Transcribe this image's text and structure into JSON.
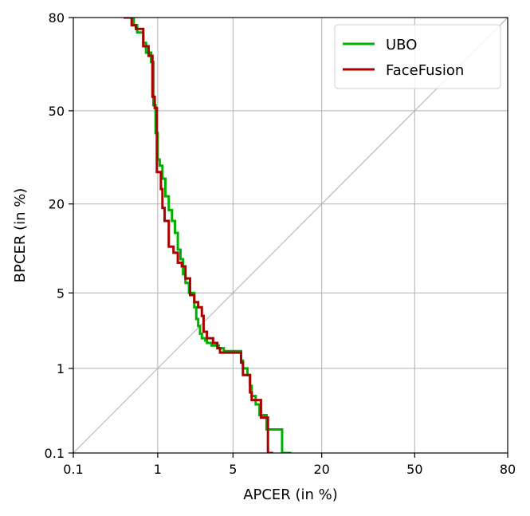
{
  "chart_data": {
    "type": "line",
    "scale": "normal-deviate (DET)",
    "xlabel": "APCER (in %)",
    "ylabel": "BPCER (in %)",
    "xlim": [
      0.1,
      80
    ],
    "ylim": [
      0.1,
      80
    ],
    "x_ticks": [
      0.1,
      1,
      5,
      20,
      50,
      80
    ],
    "y_ticks": [
      0.1,
      1,
      5,
      20,
      50,
      80
    ],
    "x_tick_labels": [
      "0.1",
      "1",
      "5",
      "20",
      "50",
      "80"
    ],
    "y_tick_labels": [
      "0.1",
      "1",
      "5",
      "20",
      "50",
      "80"
    ],
    "grid": true,
    "diagonal_reference_line": true,
    "legend_position": "top-right",
    "series": [
      {
        "name": "UBO",
        "color": "#00b000",
        "points": [
          [
            0.45,
            80
          ],
          [
            0.55,
            80
          ],
          [
            0.55,
            78
          ],
          [
            0.6,
            78
          ],
          [
            0.6,
            76
          ],
          [
            0.7,
            76
          ],
          [
            0.7,
            73
          ],
          [
            0.75,
            73
          ],
          [
            0.75,
            70
          ],
          [
            0.85,
            70
          ],
          [
            0.85,
            67
          ],
          [
            0.9,
            67
          ],
          [
            0.9,
            52
          ],
          [
            0.95,
            52
          ],
          [
            0.95,
            42
          ],
          [
            1.0,
            42
          ],
          [
            1.0,
            33
          ],
          [
            1.05,
            33
          ],
          [
            1.05,
            31
          ],
          [
            1.12,
            31
          ],
          [
            1.12,
            27
          ],
          [
            1.2,
            27
          ],
          [
            1.2,
            22
          ],
          [
            1.3,
            22
          ],
          [
            1.3,
            18.5
          ],
          [
            1.4,
            18.5
          ],
          [
            1.4,
            16
          ],
          [
            1.5,
            16
          ],
          [
            1.5,
            13.5
          ],
          [
            1.6,
            13.5
          ],
          [
            1.6,
            10.5
          ],
          [
            1.7,
            10.5
          ],
          [
            1.7,
            9
          ],
          [
            1.8,
            9
          ],
          [
            1.8,
            7
          ],
          [
            1.9,
            7
          ],
          [
            1.9,
            6
          ],
          [
            2.05,
            6
          ],
          [
            2.05,
            5
          ],
          [
            2.3,
            5
          ],
          [
            2.3,
            3.8
          ],
          [
            2.4,
            3.8
          ],
          [
            2.4,
            3.0
          ],
          [
            2.5,
            3.0
          ],
          [
            2.5,
            2.6
          ],
          [
            2.6,
            2.6
          ],
          [
            2.6,
            2.2
          ],
          [
            2.7,
            2.2
          ],
          [
            2.7,
            2.0
          ],
          [
            2.9,
            2.0
          ],
          [
            2.9,
            1.9
          ],
          [
            3.0,
            1.9
          ],
          [
            3.0,
            1.8
          ],
          [
            3.3,
            1.8
          ],
          [
            3.3,
            1.7
          ],
          [
            3.8,
            1.7
          ],
          [
            3.8,
            1.6
          ],
          [
            4.2,
            1.6
          ],
          [
            4.2,
            1.5
          ],
          [
            5.8,
            1.5
          ],
          [
            5.8,
            1.2
          ],
          [
            6.0,
            1.2
          ],
          [
            6.0,
            1.0
          ],
          [
            6.5,
            1.0
          ],
          [
            6.5,
            0.85
          ],
          [
            6.8,
            0.85
          ],
          [
            6.8,
            0.65
          ],
          [
            7.0,
            0.65
          ],
          [
            7.0,
            0.5
          ],
          [
            7.5,
            0.5
          ],
          [
            7.5,
            0.4
          ],
          [
            8.0,
            0.4
          ],
          [
            8.0,
            0.3
          ],
          [
            9.0,
            0.3
          ],
          [
            9.0,
            0.2
          ],
          [
            11.5,
            0.2
          ],
          [
            11.5,
            0.1
          ],
          [
            13.2,
            0.1
          ]
        ]
      },
      {
        "name": "FaceFusion",
        "color": "#aa0000",
        "points": [
          [
            0.42,
            80
          ],
          [
            0.52,
            80
          ],
          [
            0.52,
            78
          ],
          [
            0.58,
            78
          ],
          [
            0.58,
            77
          ],
          [
            0.7,
            77
          ],
          [
            0.7,
            72
          ],
          [
            0.8,
            72
          ],
          [
            0.8,
            69
          ],
          [
            0.88,
            69
          ],
          [
            0.88,
            55
          ],
          [
            0.93,
            55
          ],
          [
            0.93,
            51
          ],
          [
            0.98,
            51
          ],
          [
            0.98,
            29
          ],
          [
            1.08,
            29
          ],
          [
            1.08,
            24
          ],
          [
            1.12,
            24
          ],
          [
            1.12,
            19
          ],
          [
            1.18,
            19
          ],
          [
            1.18,
            16
          ],
          [
            1.3,
            16
          ],
          [
            1.3,
            11
          ],
          [
            1.45,
            11
          ],
          [
            1.45,
            10
          ],
          [
            1.6,
            10
          ],
          [
            1.6,
            8.5
          ],
          [
            1.75,
            8.5
          ],
          [
            1.75,
            8
          ],
          [
            1.9,
            8
          ],
          [
            1.9,
            6.5
          ],
          [
            2.1,
            6.5
          ],
          [
            2.1,
            4.8
          ],
          [
            2.3,
            4.8
          ],
          [
            2.3,
            4.2
          ],
          [
            2.5,
            4.2
          ],
          [
            2.5,
            3.8
          ],
          [
            2.7,
            3.8
          ],
          [
            2.7,
            3.2
          ],
          [
            2.8,
            3.2
          ],
          [
            2.8,
            2.3
          ],
          [
            3.0,
            2.3
          ],
          [
            3.0,
            2.0
          ],
          [
            3.4,
            2.0
          ],
          [
            3.4,
            1.8
          ],
          [
            3.7,
            1.8
          ],
          [
            3.7,
            1.6
          ],
          [
            3.9,
            1.6
          ],
          [
            3.9,
            1.45
          ],
          [
            5.8,
            1.45
          ],
          [
            5.8,
            1.15
          ],
          [
            6.0,
            1.15
          ],
          [
            6.0,
            0.85
          ],
          [
            6.8,
            0.85
          ],
          [
            6.8,
            0.55
          ],
          [
            7.0,
            0.55
          ],
          [
            7.0,
            0.45
          ],
          [
            8.2,
            0.45
          ],
          [
            8.2,
            0.28
          ],
          [
            9.2,
            0.28
          ],
          [
            9.2,
            0.1
          ],
          [
            10.0,
            0.1
          ]
        ]
      }
    ]
  }
}
